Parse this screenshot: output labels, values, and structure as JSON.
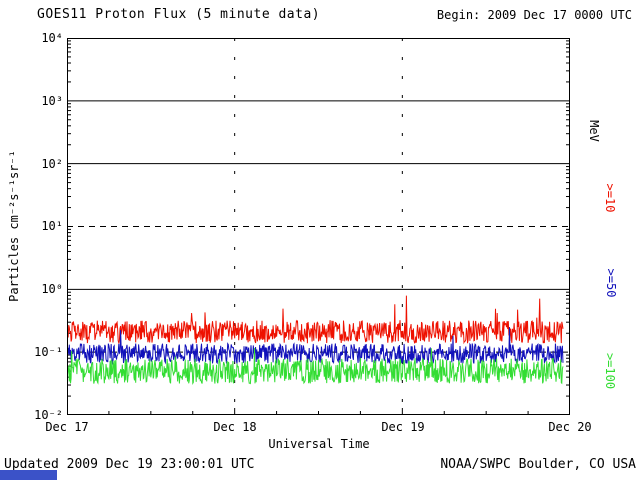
{
  "header": {
    "begin": "Begin: 2009 Dec 17 0000 UTC"
  },
  "footer": {
    "updated": "Updated 2009 Dec 19 23:00:01 UTC",
    "credit": "NOAA/SWPC Boulder, CO USA"
  },
  "right_axis": {
    "labels": [
      {
        "text": "MeV",
        "color": "#000000"
      },
      {
        "text": ">=10",
        "color": "#ee1100"
      },
      {
        "text": ">=50",
        "color": "#1111bb"
      },
      {
        "text": ">=100",
        "color": "#33dd33"
      }
    ]
  },
  "chart_data": {
    "type": "line",
    "title": "GOES11 Proton Flux (5 minute data)",
    "xlabel": "Universal Time",
    "ylabel": "Particles cm⁻²s⁻¹sr⁻¹",
    "x_tick_labels": [
      "Dec 17",
      "Dec 18",
      "Dec 19",
      "Dec 20"
    ],
    "y_tick_labels": [
      "10⁴",
      "10³",
      "10²",
      "10¹",
      "10⁰",
      "10⁻¹",
      "10⁻²"
    ],
    "y_log10_range": [
      -2,
      4
    ],
    "x_days": 3,
    "points_per_day": 288,
    "data_end_day": 2.96,
    "grid": {
      "solid_hlines_log10": [
        3,
        2,
        0
      ],
      "dashed_hlines_log10": [
        1,
        -1
      ],
      "dashed_vlines_days": [
        1,
        2
      ]
    },
    "noise_seed": 20091217,
    "series": [
      {
        "name": ">=10 MeV",
        "color": "#ee1100",
        "baseline": 0.21,
        "log10_noise_amp": 0.18,
        "spike_prob": 0.015,
        "spike_add_min": 0.25,
        "spike_add_rand": 0.4
      },
      {
        "name": ">=50 MeV",
        "color": "#1111bb",
        "baseline": 0.095,
        "log10_noise_amp": 0.16,
        "spike_prob": 0.01,
        "spike_add_min": 0.1,
        "spike_add_rand": 0.2
      },
      {
        "name": ">=100 MeV",
        "color": "#33dd33",
        "baseline": 0.05,
        "log10_noise_amp": 0.2,
        "spike_prob": 0.012,
        "spike_add_min": 0.12,
        "spike_add_rand": 0.18
      }
    ]
  }
}
